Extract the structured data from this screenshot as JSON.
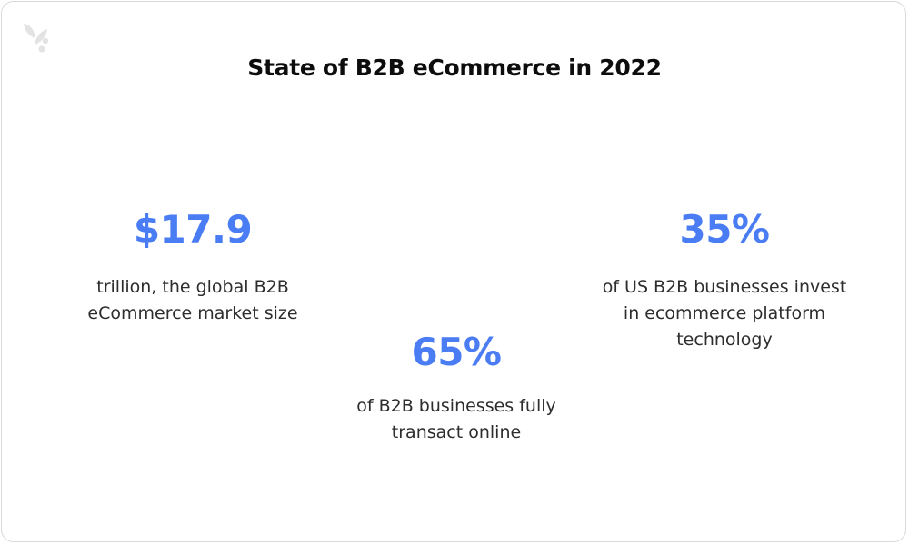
{
  "title": "State of B2B eCommerce in 2022",
  "logo": {
    "icon": "leaf-logo-icon",
    "color": "#e3e3e3"
  },
  "accent_color": "#4a7cf4",
  "stats": [
    {
      "value": "$17.9",
      "description": "trillion, the global B2B\neCommerce market size"
    },
    {
      "value": "65%",
      "description": "of B2B businesses fully\ntransact online"
    },
    {
      "value": "35%",
      "description": "of US B2B businesses invest\nin ecommerce platform\ntechnology"
    }
  ]
}
